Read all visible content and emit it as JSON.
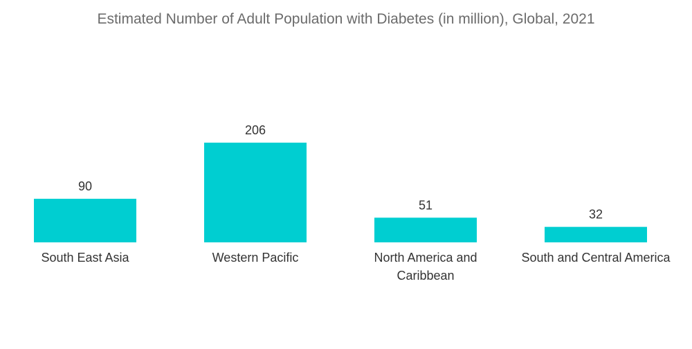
{
  "colors": {
    "bar": "#00CED1"
  },
  "chart_data": {
    "type": "bar",
    "title": "Estimated Number of Adult Population with Diabetes (in million), Global, 2021",
    "categories": [
      "South East Asia",
      "Western Pacific",
      "North America and Caribbean",
      "South and Central America"
    ],
    "category_lines": [
      [
        "South East Asia"
      ],
      [
        "Western Pacific"
      ],
      [
        "North America and",
        "Caribbean"
      ],
      [
        "South and Central America"
      ]
    ],
    "values": [
      90,
      206,
      51,
      32
    ],
    "data_labels": [
      "90",
      "206",
      "51",
      "32"
    ],
    "xlabel": "",
    "ylabel": "",
    "ylim": [
      0,
      206
    ],
    "grid": false,
    "legend": "none"
  }
}
